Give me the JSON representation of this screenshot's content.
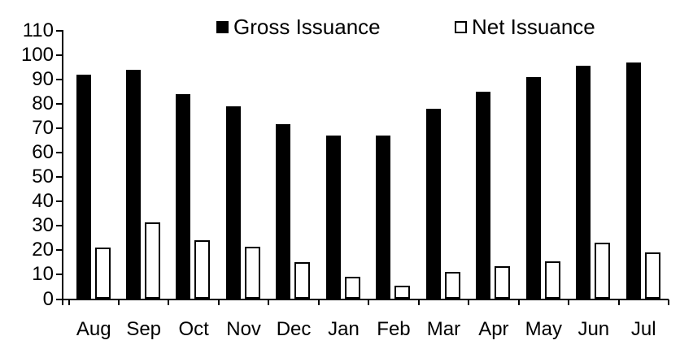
{
  "chart_data": {
    "type": "bar",
    "title": "",
    "xlabel": "",
    "ylabel": "",
    "categories": [
      "Aug",
      "Sep",
      "Oct",
      "Nov",
      "Dec",
      "Jan",
      "Feb",
      "Mar",
      "Apr",
      "May",
      "Jun",
      "Jul"
    ],
    "series": [
      {
        "name": "Gross Issuance",
        "values": [
          92,
          94,
          84,
          79,
          71.5,
          67,
          67,
          78,
          85,
          91,
          95.5,
          97
        ]
      },
      {
        "name": "Net Issuance",
        "values": [
          21,
          31.5,
          24,
          21.5,
          15,
          9,
          5.5,
          11,
          13.5,
          15.5,
          23,
          19
        ]
      }
    ],
    "ylim": [
      0,
      110
    ],
    "y_ticks": [
      0,
      10,
      20,
      30,
      40,
      50,
      60,
      70,
      80,
      90,
      100,
      110
    ],
    "grid": false,
    "legend_position": "top"
  },
  "legend": {
    "items": [
      {
        "label": "Gross Issuance",
        "swatch": "filled-black-square"
      },
      {
        "label": "Net Issuance",
        "swatch": "outlined-white-square"
      }
    ]
  },
  "colors": {
    "gross_bar_fill": "#000000",
    "net_bar_fill": "#ffffff",
    "net_bar_border": "#000000",
    "axis": "#000000",
    "text": "#000000",
    "background": "#ffffff"
  }
}
